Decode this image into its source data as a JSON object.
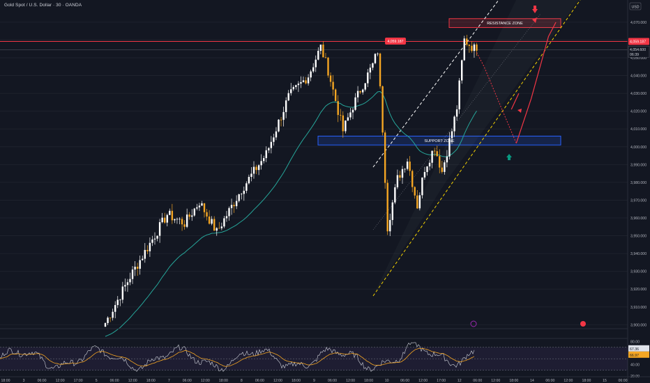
{
  "header": {
    "title": "Gold Spot / U.S. Dollar · 30 · OANDA",
    "currency": "USD"
  },
  "colors": {
    "background": "#131722",
    "bull": "#ffffff",
    "bear": "#f5a623",
    "ema": "#26a69a",
    "resistance": "#f23645",
    "support": "#2962ff",
    "rsi": "#d1d4dc",
    "rsi_ma": "#f5a623",
    "projection": "#f23645",
    "channel_upper": "#ffffff",
    "channel_lower": "#f5d300",
    "up_arrow": "#089981",
    "down_arrow": "#f23645"
  },
  "chart_data": {
    "type": "candlestick",
    "symbol": "Gold Spot / U.S. Dollar",
    "timeframe": "30",
    "y_ticks": [
      "4,070.000",
      "4,060.000",
      "4,050.000",
      "4,040.000",
      "4,030.000",
      "4,020.000",
      "4,010.000",
      "4,000.000",
      "3,990.000",
      "3,980.000",
      "3,970.000",
      "3,960.000",
      "3,950.000",
      "3,940.000",
      "3,930.000",
      "3,920.000",
      "3,910.000",
      "3,900.000"
    ],
    "y_range": [
      3897,
      4077
    ],
    "x_ticks": [
      "18:00",
      "3",
      "06:00",
      "12:00",
      "17:00",
      "5",
      "06:00",
      "12:00",
      "18:00",
      "7",
      "06:00",
      "12:00",
      "18:00",
      "8",
      "06:00",
      "12:00",
      "18:00",
      "9",
      "06:00",
      "12:00",
      "18:00",
      "10",
      "06:00",
      "12:00",
      "17:00",
      "12",
      "06:00",
      "12:00",
      "18:00",
      "14",
      "06:00",
      "12:00",
      "18:00",
      "15",
      "06:00"
    ],
    "anchors": [
      {
        "b": 0,
        "p": 3901
      },
      {
        "b": 10,
        "p": 3927
      },
      {
        "b": 25,
        "p": 3962
      },
      {
        "b": 32,
        "p": 3957
      },
      {
        "b": 38,
        "p": 3969
      },
      {
        "b": 45,
        "p": 3952
      },
      {
        "b": 55,
        "p": 3976
      },
      {
        "b": 65,
        "p": 3996
      },
      {
        "b": 74,
        "p": 4028
      },
      {
        "b": 82,
        "p": 4040
      },
      {
        "b": 87,
        "p": 4056
      },
      {
        "b": 90,
        "p": 4043
      },
      {
        "b": 96,
        "p": 4009
      },
      {
        "b": 100,
        "p": 4023
      },
      {
        "b": 104,
        "p": 4035
      },
      {
        "b": 108,
        "p": 4046
      },
      {
        "b": 110,
        "p": 4054
      },
      {
        "b": 112,
        "p": 4010
      },
      {
        "b": 114,
        "p": 3955
      },
      {
        "b": 118,
        "p": 3982
      },
      {
        "b": 122,
        "p": 3993
      },
      {
        "b": 126,
        "p": 3967
      },
      {
        "b": 129,
        "p": 3988
      },
      {
        "b": 133,
        "p": 4000
      },
      {
        "b": 136,
        "p": 3986
      },
      {
        "b": 140,
        "p": 4009
      },
      {
        "b": 142,
        "p": 4022
      },
      {
        "b": 145,
        "p": 4060
      },
      {
        "b": 150,
        "p": 4054
      }
    ],
    "resistance_level": "4,059.187",
    "current_price": "4,054.600",
    "countdown": "06:39",
    "resistance_zone": {
      "label": "RESISTANCE ZONE",
      "from": 4067,
      "to": 4072
    },
    "support_zone": {
      "label": "SUPPORT ZONE",
      "from": 4001,
      "to": 4006
    },
    "projection_path": [
      [
        4053,
        0
      ],
      [
        4045,
        3
      ],
      [
        4025,
        9
      ],
      [
        4002,
        16
      ],
      [
        4027,
        22
      ],
      [
        4062,
        29
      ],
      [
        4070,
        32
      ]
    ],
    "alt_projection": [
      [
        4021,
        14
      ],
      [
        4030,
        17
      ]
    ],
    "ema_label": "EMA"
  },
  "rsi": {
    "value": "67.36",
    "ma_value": "66.97",
    "ticks": [
      "80.00",
      "40.00",
      "20.00"
    ]
  }
}
